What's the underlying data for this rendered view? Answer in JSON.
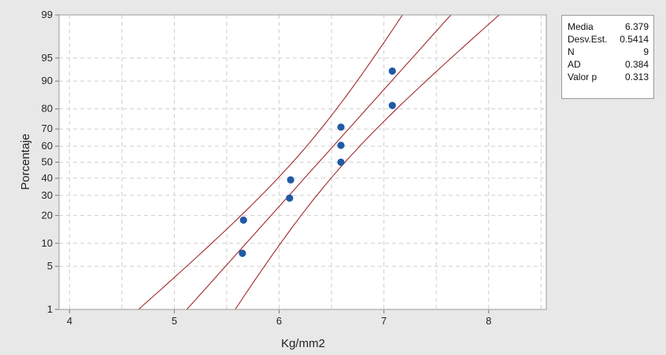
{
  "chart_data": {
    "type": "scatter",
    "title": "",
    "xlabel": "Kg/mm2",
    "ylabel": "Porcentaje",
    "xlim": [
      3.9,
      8.55
    ],
    "x_ticks": [
      "4",
      "5",
      "6",
      "7",
      "8"
    ],
    "x_tick_values": [
      4,
      5,
      6,
      7,
      8
    ],
    "y_scale": "normal-probability",
    "ylim": [
      1,
      99
    ],
    "y_ticks": [
      "1",
      "5",
      "10",
      "20",
      "30",
      "40",
      "50",
      "60",
      "70",
      "80",
      "90",
      "95",
      "99"
    ],
    "y_tick_values": [
      1,
      5,
      10,
      20,
      30,
      40,
      50,
      60,
      70,
      80,
      90,
      95,
      99
    ],
    "grid": true,
    "points": [
      {
        "x": 5.65,
        "y": 7.5
      },
      {
        "x": 5.66,
        "y": 18.0
      },
      {
        "x": 6.1,
        "y": 28.5
      },
      {
        "x": 6.11,
        "y": 39.0
      },
      {
        "x": 6.59,
        "y": 50.0
      },
      {
        "x": 6.59,
        "y": 60.5
      },
      {
        "x": 6.59,
        "y": 71.0
      },
      {
        "x": 7.08,
        "y": 81.5
      },
      {
        "x": 7.08,
        "y": 92.5
      }
    ],
    "fit": {
      "mean": 6.379,
      "sd": 0.5414
    },
    "confidence_band": {
      "approx_halfwidth_at_mean": 0.25
    },
    "colors": {
      "points": "#1f5aa6",
      "lines": "#a3282a",
      "grid": "#cfcfcf",
      "plot_bg": "#ffffff"
    }
  },
  "stats": [
    {
      "label": "Media",
      "value": "6.379"
    },
    {
      "label": "Desv.Est.",
      "value": "0.5414"
    },
    {
      "label": "N",
      "value": "9"
    },
    {
      "label": "AD",
      "value": "0.384"
    },
    {
      "label": "Valor p",
      "value": "0.313"
    }
  ]
}
